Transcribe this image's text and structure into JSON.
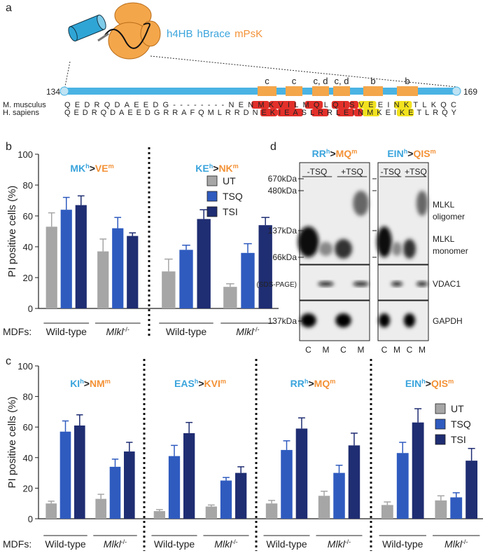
{
  "panel_a": {
    "label": "a",
    "construct": [
      "h4HB",
      "hBrace",
      "mPsK"
    ],
    "start": 134,
    "end": 169,
    "annotations": [
      "c",
      "c",
      "c, d",
      "c, d",
      "b",
      "b"
    ],
    "species": [
      "M. musculus",
      "H. sapiens"
    ],
    "sequences": [
      "QEDRQDAEEDG--------NENMKVILMQLQISVEEINKTLKQC",
      "QEDRQDAEEDGRRAFQMLRRDNEKIEASLRRLEINMKEIKETLRQY"
    ]
  },
  "chart_data": [
    {
      "type": "bar",
      "label": "b",
      "ylabel": "PI positive cells (%)",
      "xlabel": "MDFs:",
      "ylim": [
        0,
        100
      ],
      "yticks": [
        0,
        20,
        40,
        60,
        80,
        100
      ],
      "series": [
        {
          "name": "UT",
          "color": "#a6a6a6"
        },
        {
          "name": "TSQ",
          "color": "#2f5bbf"
        },
        {
          "name": "TSI",
          "color": "#1f2d72"
        }
      ],
      "panels": [
        {
          "title": {
            "human": "MK",
            "human_sup": "h",
            "sep": ">",
            "mouse": "VE",
            "mouse_sup": "m"
          },
          "categories": [
            "Wild-type",
            {
              "text": "Mlkl",
              "sup": "-/-"
            }
          ],
          "series": [
            {
              "values": [
                53,
                37
              ],
              "errors": [
                9,
                8
              ]
            },
            {
              "values": [
                64,
                52
              ],
              "errors": [
                8,
                7
              ]
            },
            {
              "values": [
                67,
                47
              ],
              "errors": [
                6,
                2
              ]
            }
          ]
        },
        {
          "title": {
            "human": "KE",
            "human_sup": "h",
            "sep": ">",
            "mouse": "NK",
            "mouse_sup": "m"
          },
          "categories": [
            "Wild-type",
            {
              "text": "Mlkl",
              "sup": "-/-"
            }
          ],
          "series": [
            {
              "values": [
                24,
                14
              ],
              "errors": [
                8,
                2
              ]
            },
            {
              "values": [
                38,
                36
              ],
              "errors": [
                3,
                6
              ]
            },
            {
              "values": [
                58,
                54
              ],
              "errors": [
                6,
                5
              ]
            }
          ]
        }
      ]
    },
    {
      "type": "bar",
      "label": "c",
      "ylabel": "PI positive cells (%)",
      "xlabel": "MDFs:",
      "ylim": [
        0,
        100
      ],
      "yticks": [
        0,
        20,
        40,
        60,
        80,
        100
      ],
      "series": [
        {
          "name": "UT",
          "color": "#a6a6a6"
        },
        {
          "name": "TSQ",
          "color": "#2f5bbf"
        },
        {
          "name": "TSI",
          "color": "#1f2d72"
        }
      ],
      "panels": [
        {
          "title": {
            "human": "KI",
            "human_sup": "h",
            "sep": ">",
            "mouse": "NM",
            "mouse_sup": "m"
          },
          "categories": [
            "Wild-type",
            {
              "text": "Mlkl",
              "sup": "-/-"
            }
          ],
          "series": [
            {
              "values": [
                10,
                13
              ],
              "errors": [
                1.5,
                3
              ]
            },
            {
              "values": [
                57,
                34
              ],
              "errors": [
                7,
                5
              ]
            },
            {
              "values": [
                61,
                44
              ],
              "errors": [
                7,
                6
              ]
            }
          ]
        },
        {
          "title": {
            "human": "EAS",
            "human_sup": "h",
            "sep": ">",
            "mouse": "KVI",
            "mouse_sup": "m"
          },
          "categories": [
            "Wild-type",
            {
              "text": "Mlkl",
              "sup": "-/-"
            }
          ],
          "series": [
            {
              "values": [
                5,
                8
              ],
              "errors": [
                1,
                1
              ]
            },
            {
              "values": [
                41,
                25
              ],
              "errors": [
                7,
                2
              ]
            },
            {
              "values": [
                56,
                30
              ],
              "errors": [
                7,
                4
              ]
            }
          ]
        },
        {
          "title": {
            "human": "RR",
            "human_sup": "h",
            "sep": ">",
            "mouse": "MQ",
            "mouse_sup": "m"
          },
          "categories": [
            "Wild-type",
            {
              "text": "Mlkl",
              "sup": "-/-"
            }
          ],
          "series": [
            {
              "values": [
                10,
                15
              ],
              "errors": [
                2,
                3
              ]
            },
            {
              "values": [
                45,
                30
              ],
              "errors": [
                6,
                5
              ]
            },
            {
              "values": [
                59,
                48
              ],
              "errors": [
                7,
                8
              ]
            }
          ]
        },
        {
          "title": {
            "human": "EIN",
            "human_sup": "h",
            "sep": ">",
            "mouse": "QIS",
            "mouse_sup": "m"
          },
          "categories": [
            "Wild-type",
            {
              "text": "Mlkl",
              "sup": "-/-"
            }
          ],
          "series": [
            {
              "values": [
                9,
                12
              ],
              "errors": [
                2,
                3
              ]
            },
            {
              "values": [
                43,
                14
              ],
              "errors": [
                7,
                3
              ]
            },
            {
              "values": [
                63,
                38
              ],
              "errors": [
                9,
                8
              ]
            }
          ]
        }
      ]
    }
  ],
  "panel_d": {
    "label": "d",
    "blots": [
      {
        "title": {
          "human": "RR",
          "human_sup": "h",
          "sep": ">",
          "mouse": "MQ",
          "mouse_sup": "m"
        },
        "treatments": [
          "-TSQ",
          "+TSQ"
        ],
        "lanes": [
          "C",
          "M",
          "C",
          "M"
        ]
      },
      {
        "title": {
          "human": "EIN",
          "human_sup": "h",
          "sep": ">",
          "mouse": "QIS",
          "mouse_sup": "m"
        },
        "treatments": [
          "-TSQ",
          "+TSQ"
        ],
        "lanes": [
          "C",
          "M",
          "C",
          "M"
        ]
      }
    ],
    "markers": [
      "670kDa",
      "480kDa",
      "137kDa",
      "66kDa"
    ],
    "sds_page": "(SDS-PAGE)",
    "gapdh_marker": "137kDa",
    "bands": [
      [
        "MLKL",
        "oligomer"
      ],
      [
        "MLKL",
        "monomer"
      ],
      "VDAC1",
      "GAPDH"
    ]
  }
}
